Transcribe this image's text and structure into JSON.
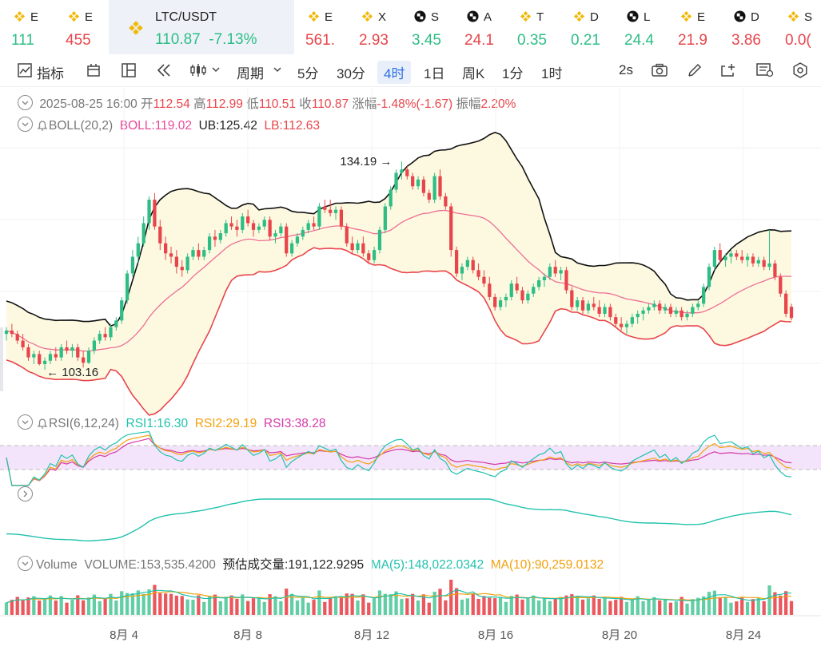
{
  "tabs": [
    {
      "symbol": "E",
      "value": "111",
      "dir": "up",
      "w": 68,
      "icon": "binance-icon"
    },
    {
      "symbol": "E",
      "value": "455",
      "dir": "down",
      "w": 68,
      "icon": "binance-icon"
    },
    {
      "symbol": "LTC/USDT",
      "value": "110.87",
      "change": "-7.13%",
      "dir": "up",
      "w": 232,
      "icon": "binance-icon",
      "active": true
    },
    {
      "symbol": "E",
      "value": "561.",
      "dir": "down",
      "w": 67,
      "icon": "binance-icon"
    },
    {
      "symbol": "X",
      "value": "2.93",
      "dir": "down",
      "w": 66,
      "icon": "binance-icon"
    },
    {
      "symbol": "S",
      "value": "3.45",
      "dir": "up",
      "w": 66,
      "icon": "checker-icon"
    },
    {
      "symbol": "A",
      "value": "24.1",
      "dir": "down",
      "w": 66,
      "icon": "checker-icon"
    },
    {
      "symbol": "T",
      "value": "0.35",
      "dir": "up",
      "w": 67,
      "icon": "binance-icon"
    },
    {
      "symbol": "D",
      "value": "0.21",
      "dir": "up",
      "w": 67,
      "icon": "binance-icon"
    },
    {
      "symbol": "L",
      "value": "24.4",
      "dir": "up",
      "w": 67,
      "icon": "checker-icon"
    },
    {
      "symbol": "E",
      "value": "21.9",
      "dir": "down",
      "w": 67,
      "icon": "binance-icon"
    },
    {
      "symbol": "D",
      "value": "3.86",
      "dir": "down",
      "w": 67,
      "icon": "checker-icon"
    },
    {
      "symbol": "S",
      "value": "0.0(",
      "dir": "down",
      "w": 60,
      "icon": "binance-icon"
    }
  ],
  "toolbar": {
    "indicator": "指标",
    "period": "周期",
    "intervals": [
      "5分",
      "30分",
      "4时",
      "1日",
      "周K",
      "1分",
      "1时"
    ],
    "selected": "4时",
    "refresh": "2s"
  },
  "ohlc": {
    "date": "2025-08-25 16:00",
    "open_label": "开",
    "open": "112.54",
    "high_label": "高",
    "high": "112.99",
    "low_label": "低",
    "low": "110.51",
    "close_label": "收",
    "close": "110.87",
    "change_label": "涨幅",
    "change": "-1.48%(-1.67)",
    "amp_label": "振幅",
    "amp": "2.20%"
  },
  "boll": {
    "label": "BOLL(20,2)",
    "boll": "BOLL:119.02",
    "ub": "UB:125.42",
    "lb": "LB:112.63"
  },
  "rsi": {
    "label": "RSI(6,12,24)",
    "rsi1": "RSI1:16.30",
    "rsi2": "RSI2:29.19",
    "rsi3": "RSI3:38.28"
  },
  "volume": {
    "label": "Volume",
    "vol": "VOLUME:153,535.4200",
    "est": "预估成交量:191,122.9295",
    "ma5": "MA(5):148,022.0342",
    "ma10": "MA(10):90,259.0132"
  },
  "colors": {
    "up": "#2ebd85",
    "down": "#e8454b",
    "boll_mid": "#ee6e94",
    "ub": "#111111",
    "lb": "#e8454b",
    "band": "#fdf9e1",
    "rsi1": "#21c2ad",
    "rsi2": "#f2a10c",
    "rsi3": "#d63aa6",
    "rsi_band": "#f3e4fb"
  },
  "chart_data": {
    "type": "candlestick",
    "interval": "4h",
    "x_ticks": [
      "8月 4",
      "8月 8",
      "8月 12",
      "8月 16",
      "8月 20",
      "8月 24"
    ],
    "annotations": {
      "high": "134.19",
      "low": "103.16"
    },
    "price_range": [
      99,
      141
    ],
    "bars": [
      [
        108.5,
        109.5,
        107.5,
        109
      ],
      [
        109,
        110,
        108,
        108.5
      ],
      [
        108.5,
        109,
        107,
        107.5
      ],
      [
        107.5,
        108.5,
        106,
        106.5
      ],
      [
        106.5,
        107,
        104.5,
        105
      ],
      [
        105,
        106,
        104,
        105.5
      ],
      [
        105.5,
        106,
        103.8,
        104
      ],
      [
        104,
        105,
        103.16,
        104.5
      ],
      [
        104.5,
        106,
        104,
        105.5
      ],
      [
        105.5,
        106.5,
        104.5,
        105
      ],
      [
        105,
        107,
        104.5,
        106.5
      ],
      [
        106.5,
        107.5,
        105.5,
        106
      ],
      [
        106,
        107,
        105,
        106.5
      ],
      [
        106.5,
        107,
        104.5,
        105
      ],
      [
        105,
        106,
        103.5,
        104.2
      ],
      [
        104.2,
        106.5,
        104,
        106
      ],
      [
        106,
        108,
        105.5,
        107.5
      ],
      [
        107.5,
        109,
        107,
        108.5
      ],
      [
        108.5,
        109.5,
        107.5,
        108
      ],
      [
        108,
        110,
        107.5,
        109.5
      ],
      [
        109.5,
        111,
        109,
        110.5
      ],
      [
        110.5,
        114,
        110,
        113.5
      ],
      [
        113.5,
        118,
        113,
        117.5
      ],
      [
        117.5,
        121,
        117,
        120
      ],
      [
        120,
        123,
        119,
        122
      ],
      [
        122,
        126,
        121.5,
        125
      ],
      [
        125,
        129,
        124,
        128.5
      ],
      [
        128.5,
        129.5,
        124,
        124.5
      ],
      [
        124.5,
        125.5,
        121,
        122
      ],
      [
        122,
        123,
        119.5,
        120.5
      ],
      [
        120.5,
        121.5,
        119,
        120
      ],
      [
        120,
        121,
        117.5,
        118.5
      ],
      [
        118.5,
        119.5,
        117,
        118
      ],
      [
        118,
        120.5,
        117.5,
        120
      ],
      [
        120,
        121.5,
        119.5,
        121
      ],
      [
        121,
        122,
        119.5,
        120
      ],
      [
        120,
        121.5,
        119.5,
        121
      ],
      [
        121,
        123.5,
        120.5,
        123
      ],
      [
        123,
        124,
        121.5,
        122.5
      ],
      [
        122.5,
        124,
        122,
        123.5
      ],
      [
        123.5,
        125.5,
        123,
        125
      ],
      [
        125,
        126,
        124,
        124.5
      ],
      [
        124.5,
        125.5,
        123,
        124
      ],
      [
        124,
        126.5,
        123.5,
        126
      ],
      [
        126,
        127,
        124.5,
        125
      ],
      [
        125,
        125.5,
        123,
        124
      ],
      [
        124,
        125,
        123.5,
        124.5
      ],
      [
        124.5,
        126,
        124,
        125.5
      ],
      [
        125.5,
        126,
        122.5,
        123
      ],
      [
        123,
        124,
        122,
        123.5
      ],
      [
        123.5,
        125,
        123,
        124.5
      ],
      [
        124.5,
        125,
        120,
        120.5
      ],
      [
        120.5,
        122.5,
        120,
        122
      ],
      [
        122,
        123.5,
        121.5,
        123
      ],
      [
        123,
        124.5,
        122.5,
        124
      ],
      [
        124,
        125.5,
        123.5,
        125
      ],
      [
        125,
        126,
        124,
        124.5
      ],
      [
        124.5,
        128,
        124,
        127.5
      ],
      [
        127.5,
        128.5,
        126.5,
        127
      ],
      [
        127,
        128.5,
        126,
        126.5
      ],
      [
        126.5,
        127.5,
        125.5,
        127
      ],
      [
        127,
        127.5,
        124,
        124.5
      ],
      [
        124.5,
        125,
        121.5,
        122
      ],
      [
        122,
        123,
        120.5,
        121
      ],
      [
        121,
        122.5,
        120.5,
        122
      ],
      [
        122,
        123,
        120,
        120.5
      ],
      [
        120.5,
        121,
        119,
        119.5
      ],
      [
        119.5,
        121.5,
        119,
        121
      ],
      [
        121,
        124.5,
        120.5,
        124
      ],
      [
        124,
        128,
        123.5,
        127.5
      ],
      [
        127.5,
        130.5,
        127,
        130
      ],
      [
        130,
        133,
        129.5,
        132.5
      ],
      [
        132.5,
        134.19,
        131.5,
        133
      ],
      [
        133,
        133.5,
        131.5,
        132
      ],
      [
        132,
        132.5,
        130,
        130.5
      ],
      [
        130.5,
        132,
        130,
        131.5
      ],
      [
        131.5,
        132,
        129,
        129.5
      ],
      [
        129.5,
        130,
        128,
        128.5
      ],
      [
        128.5,
        132.5,
        128,
        132
      ],
      [
        132,
        133,
        128.5,
        129
      ],
      [
        129,
        129.5,
        127,
        127.5
      ],
      [
        127.5,
        128,
        120,
        121
      ],
      [
        121,
        121.5,
        117,
        117.5
      ],
      [
        117.5,
        119,
        116.5,
        118.5
      ],
      [
        118.5,
        120,
        118,
        119.5
      ],
      [
        119.5,
        120,
        117.5,
        118
      ],
      [
        118,
        119,
        116.5,
        117
      ],
      [
        117,
        118,
        115.5,
        116
      ],
      [
        116,
        117,
        113.5,
        114
      ],
      [
        114,
        114.5,
        112,
        112.5
      ],
      [
        112.5,
        114,
        112,
        113.5
      ],
      [
        113.5,
        114.5,
        112.5,
        114
      ],
      [
        114,
        116.5,
        113.5,
        116
      ],
      [
        116,
        117,
        114.5,
        115
      ],
      [
        115,
        115.5,
        113,
        113.5
      ],
      [
        113.5,
        115,
        113,
        114.5
      ],
      [
        114.5,
        116,
        114,
        115.5
      ],
      [
        115.5,
        117,
        115,
        116.5
      ],
      [
        116.5,
        117.5,
        115.5,
        117
      ],
      [
        117,
        119,
        116.5,
        118.5
      ],
      [
        118.5,
        119.5,
        117,
        117.5
      ],
      [
        117.5,
        118.5,
        116.5,
        118
      ],
      [
        118,
        118.5,
        114.5,
        115
      ],
      [
        115,
        115.5,
        112,
        112.5
      ],
      [
        112.5,
        114,
        112,
        113.5
      ],
      [
        113.5,
        114,
        111.5,
        112
      ],
      [
        112,
        113.5,
        111.5,
        113
      ],
      [
        113,
        114,
        112,
        112.5
      ],
      [
        112.5,
        113.5,
        111,
        111.5
      ],
      [
        111.5,
        113,
        111,
        112.5
      ],
      [
        112.5,
        113,
        110.5,
        111
      ],
      [
        111,
        111.5,
        109.5,
        110
      ],
      [
        110,
        111,
        109,
        109.5
      ],
      [
        109.5,
        110.5,
        108.5,
        110
      ],
      [
        110,
        111.5,
        109.5,
        111
      ],
      [
        111,
        112,
        110,
        111.5
      ],
      [
        111.5,
        112.5,
        110.5,
        112
      ],
      [
        112,
        113,
        111.5,
        112.5
      ],
      [
        112.5,
        113.5,
        112,
        113
      ],
      [
        113,
        113.5,
        111.5,
        112
      ],
      [
        112,
        113,
        111.5,
        112.5
      ],
      [
        112.5,
        113,
        111,
        111.5
      ],
      [
        111.5,
        112.5,
        111,
        112
      ],
      [
        112,
        112.5,
        110.5,
        111
      ],
      [
        111,
        112,
        110.5,
        111.5
      ],
      [
        111.5,
        113,
        111,
        112.5
      ],
      [
        112.5,
        113.5,
        112,
        113
      ],
      [
        113,
        116,
        112.5,
        115.5
      ],
      [
        115.5,
        119,
        115,
        118.5
      ],
      [
        118.5,
        121.5,
        118,
        121
      ],
      [
        121,
        122,
        119,
        119.5
      ],
      [
        119.5,
        120.5,
        118.5,
        120
      ],
      [
        120,
        121,
        119,
        120.5
      ],
      [
        120.5,
        121,
        119.5,
        120
      ],
      [
        120,
        121,
        119,
        119.5
      ],
      [
        119.5,
        120.5,
        118.5,
        120
      ],
      [
        120,
        120.5,
        118.5,
        119
      ],
      [
        119,
        120,
        118.5,
        119.5
      ],
      [
        119.5,
        120,
        118,
        118.5
      ],
      [
        118.5,
        124,
        118,
        119
      ],
      [
        119,
        119.5,
        116.5,
        117
      ],
      [
        117,
        117.5,
        114,
        114.5
      ],
      [
        114.5,
        115,
        111,
        111.5
      ],
      [
        112.54,
        112.99,
        110.51,
        110.87
      ]
    ]
  }
}
